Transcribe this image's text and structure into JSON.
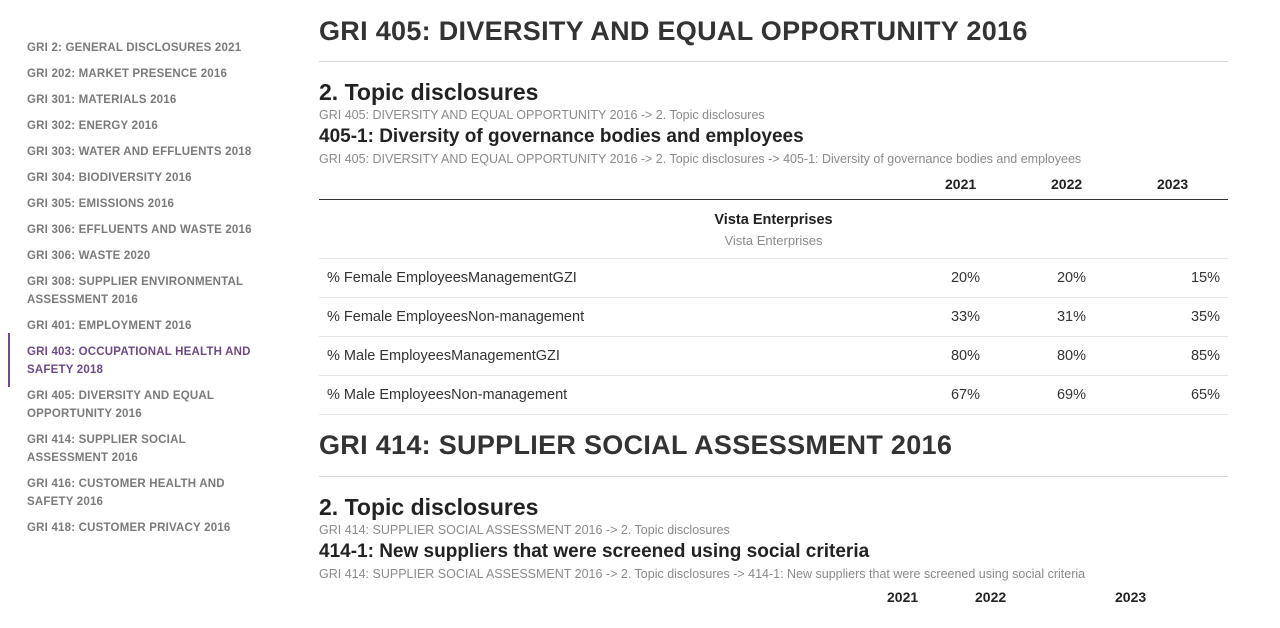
{
  "sidebar": {
    "items": [
      {
        "label": "GRI 2: GENERAL DISCLOSURES 2021"
      },
      {
        "label": "GRI 202: MARKET PRESENCE 2016"
      },
      {
        "label": "GRI 301: MATERIALS 2016"
      },
      {
        "label": "GRI 302: ENERGY 2016"
      },
      {
        "label": "GRI 303: WATER AND EFFLUENTS 2018"
      },
      {
        "label": "GRI 304: BIODIVERSITY 2016"
      },
      {
        "label": "GRI 305: EMISSIONS 2016"
      },
      {
        "label": "GRI 306: EFFLUENTS AND WASTE 2016"
      },
      {
        "label": "GRI 306: WASTE 2020"
      },
      {
        "label": "GRI 308: SUPPLIER ENVIRONMENTAL ASSESSMENT 2016"
      },
      {
        "label": "GRI 401: EMPLOYMENT 2016"
      },
      {
        "label": "GRI 403: OCCUPATIONAL HEALTH AND SAFETY 2018",
        "active": true
      },
      {
        "label": "GRI 405: DIVERSITY AND EQUAL OPPORTUNITY 2016"
      },
      {
        "label": "GRI 414: SUPPLIER SOCIAL ASSESSMENT 2016"
      },
      {
        "label": "GRI 416: CUSTOMER HEALTH AND SAFETY 2016"
      },
      {
        "label": "GRI 418: CUSTOMER PRIVACY 2016"
      }
    ],
    "active_color": "#6b4a86"
  },
  "section1": {
    "title": "GRI 405: DIVERSITY AND EQUAL OPPORTUNITY 2016",
    "subtitle": "2. Topic disclosures",
    "crumb1": "GRI 405: DIVERSITY AND EQUAL OPPORTUNITY 2016 -> 2. Topic disclosures",
    "disclosure": "405-1: Diversity of governance bodies and employees",
    "crumb2": "GRI 405: DIVERSITY AND EQUAL OPPORTUNITY 2016 -> 2. Topic disclosures -> 405-1: Diversity of governance bodies and employees",
    "table": {
      "years": [
        "2021",
        "2022",
        "2023"
      ],
      "entity": "Vista Enterprises",
      "entity_sub": "Vista Enterprises",
      "rows": [
        {
          "label": "% Female EmployeesManagementGZI",
          "values": [
            "20%",
            "20%",
            "15%"
          ]
        },
        {
          "label": "% Female EmployeesNon-management",
          "values": [
            "33%",
            "31%",
            "35%"
          ]
        },
        {
          "label": "% Male EmployeesManagementGZI",
          "values": [
            "80%",
            "80%",
            "85%"
          ]
        },
        {
          "label": "% Male EmployeesNon-management",
          "values": [
            "67%",
            "69%",
            "65%"
          ]
        }
      ]
    }
  },
  "section2": {
    "title": "GRI 414: SUPPLIER SOCIAL ASSESSMENT 2016",
    "subtitle": "2. Topic disclosures",
    "crumb1": "GRI 414: SUPPLIER SOCIAL ASSESSMENT 2016 -> 2. Topic disclosures",
    "disclosure": "414-1: New suppliers that were screened using social criteria",
    "crumb2": "GRI 414: SUPPLIER SOCIAL ASSESSMENT 2016 -> 2. Topic disclosures -> 414-1: New suppliers that were screened using social criteria",
    "years": [
      "2021",
      "2022",
      "2023"
    ]
  }
}
